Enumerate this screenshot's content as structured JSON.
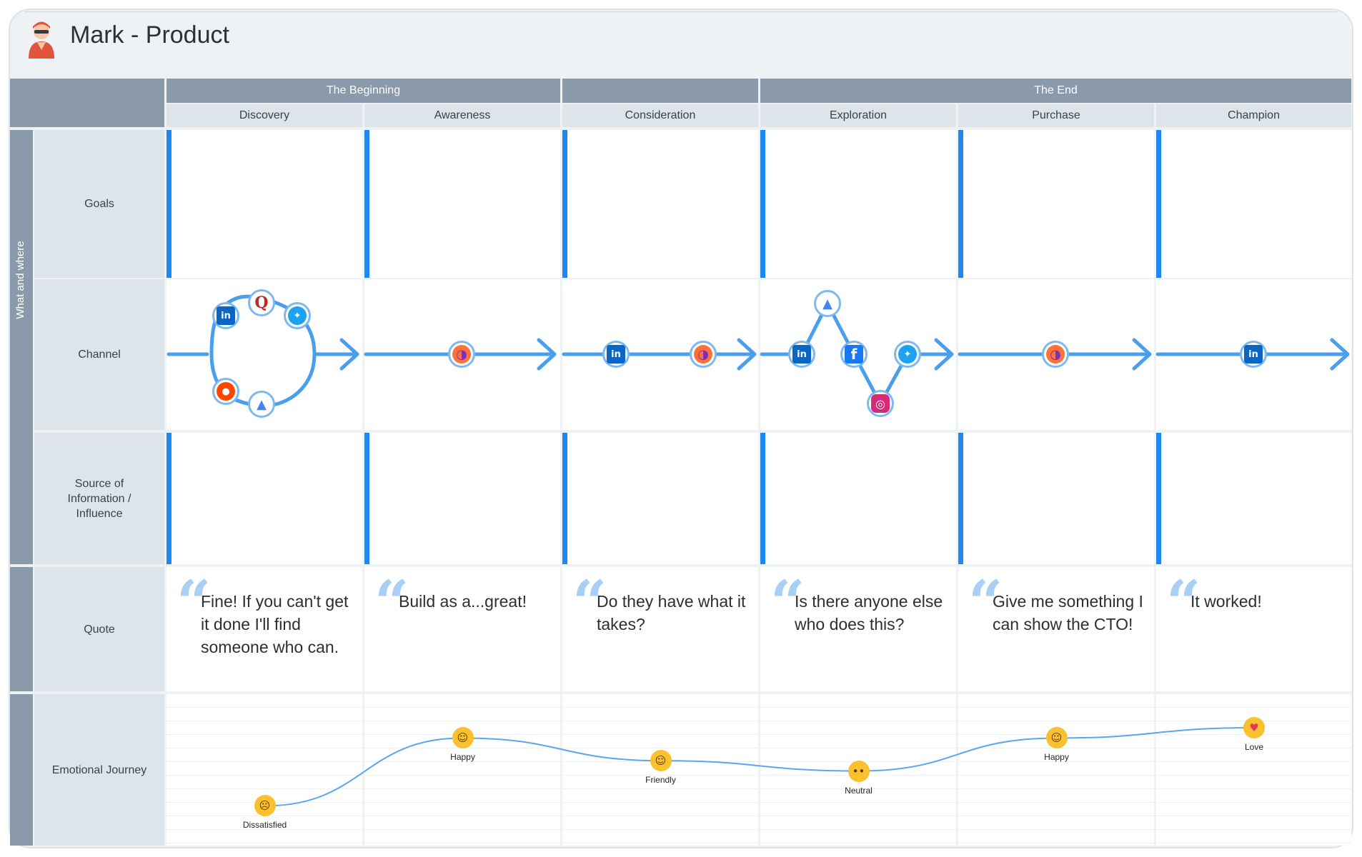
{
  "page": {
    "title": "Mark - Product"
  },
  "phases": [
    {
      "label": "The Beginning"
    },
    {
      "label": ""
    },
    {
      "label": "The End"
    }
  ],
  "stages": [
    "Discovery",
    "Awareness",
    "Consideration",
    "Exploration",
    "Purchase",
    "Champion"
  ],
  "group_label": "What and where",
  "rows": [
    "Goals",
    "Channel",
    "Source of Information / Influence",
    "Quote",
    "Emotional Journey"
  ],
  "channel_icons": [
    [
      "linkedin-icon",
      "quora-icon",
      "twitter-icon",
      "reddit-icon",
      "google-ads-icon"
    ],
    [
      "firefox-icon"
    ],
    [
      "linkedin-icon",
      "firefox-icon"
    ],
    [
      "google-ads-icon",
      "linkedin-icon",
      "facebook-icon",
      "twitter-icon",
      "instagram-icon"
    ],
    [
      "firefox-icon"
    ],
    [
      "linkedin-icon"
    ]
  ],
  "quotes": [
    "Fine! If you can't get it done I'll find someone who can.",
    "Build as a...great!",
    "Do they have what it takes?",
    "Is there anyone else who does this?",
    "Give me something I can show the CTO!",
    "It worked!"
  ],
  "emotions": [
    {
      "label": "Dissatisfied",
      "level": 0.08
    },
    {
      "label": "Happy",
      "level": 0.74
    },
    {
      "label": "Friendly",
      "level": 0.52
    },
    {
      "label": "Neutral",
      "level": 0.42
    },
    {
      "label": "Happy",
      "level": 0.74
    },
    {
      "label": "Love",
      "level": 0.84
    }
  ],
  "colors": {
    "accent": "#1e88f0",
    "flow": "#4a9eee",
    "header": "#8a9aaa",
    "label_bg": "#dde4ea",
    "emoji": "#fbc02d"
  }
}
